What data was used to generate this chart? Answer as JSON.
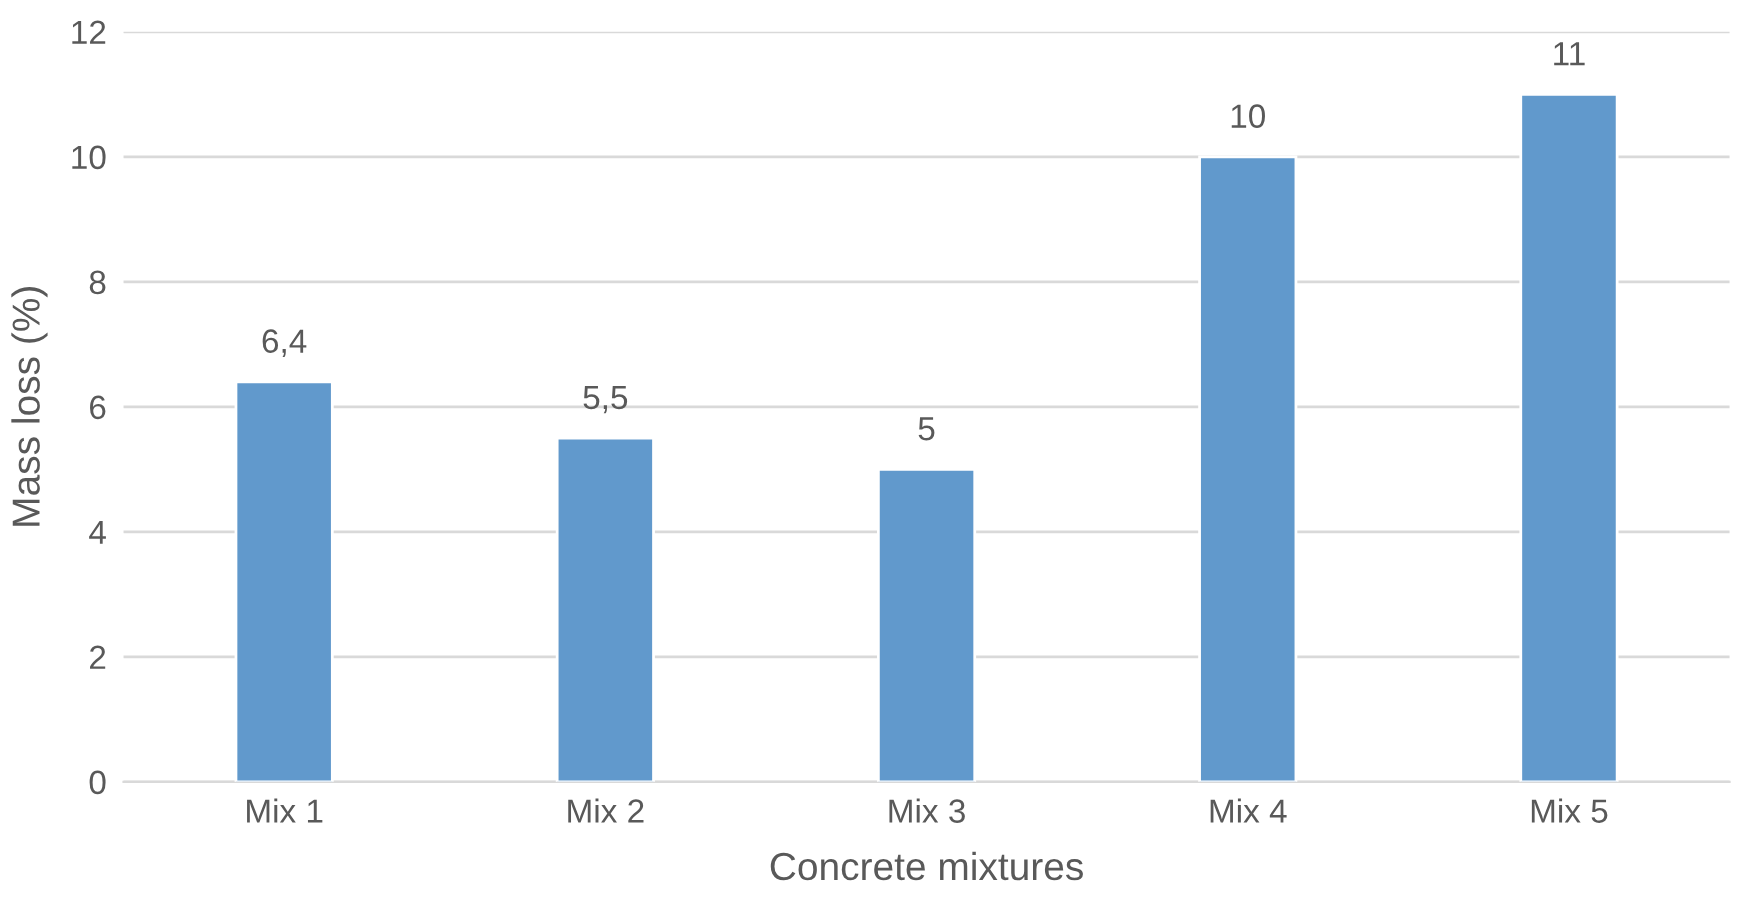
{
  "chart_data": {
    "type": "bar",
    "xlabel": "Concrete mixtures",
    "ylabel": "Mass loss (%)",
    "categories": [
      "Mix 1",
      "Mix 2",
      "Mix 3",
      "Mix 4",
      "Mix 5"
    ],
    "values": [
      6.4,
      5.5,
      5,
      10,
      11
    ],
    "value_labels": [
      "6,4",
      "5,5",
      "5",
      "10",
      "11"
    ],
    "color": "#6199cc",
    "ylim": [
      0,
      12
    ],
    "yticks": [
      0,
      2,
      4,
      6,
      8,
      10,
      12
    ],
    "grid": "y",
    "legend": false
  }
}
